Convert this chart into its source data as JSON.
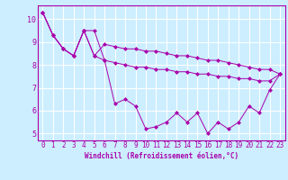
{
  "xlabel": "Windchill (Refroidissement éolien,°C)",
  "background_color": "#cceeff",
  "line_color": "#aa00aa",
  "grid_color": "#ffffff",
  "xlim": [
    -0.5,
    23.5
  ],
  "ylim": [
    4.7,
    10.6
  ],
  "yticks": [
    5,
    6,
    7,
    8,
    9,
    10
  ],
  "xticks": [
    0,
    1,
    2,
    3,
    4,
    5,
    6,
    7,
    8,
    9,
    10,
    11,
    12,
    13,
    14,
    15,
    16,
    17,
    18,
    19,
    20,
    21,
    22,
    23
  ],
  "series": [
    [
      10.3,
      9.3,
      8.7,
      8.4,
      9.5,
      9.5,
      8.2,
      6.3,
      6.5,
      6.2,
      5.2,
      5.3,
      5.5,
      5.9,
      5.5,
      5.9,
      5.0,
      5.5,
      5.2,
      5.5,
      6.2,
      5.9,
      6.9,
      7.6
    ],
    [
      10.3,
      9.3,
      8.7,
      8.4,
      9.5,
      8.4,
      8.9,
      8.8,
      8.7,
      8.7,
      8.6,
      8.6,
      8.5,
      8.4,
      8.4,
      8.3,
      8.2,
      8.2,
      8.1,
      8.0,
      7.9,
      7.8,
      7.8,
      7.6
    ],
    [
      10.3,
      9.3,
      8.7,
      8.4,
      9.5,
      8.4,
      8.2,
      8.1,
      8.0,
      7.9,
      7.9,
      7.8,
      7.8,
      7.7,
      7.7,
      7.6,
      7.6,
      7.5,
      7.5,
      7.4,
      7.4,
      7.3,
      7.3,
      7.6
    ]
  ],
  "tick_fontsize": 5.5,
  "xlabel_fontsize": 5.5,
  "marker_size": 2.5
}
